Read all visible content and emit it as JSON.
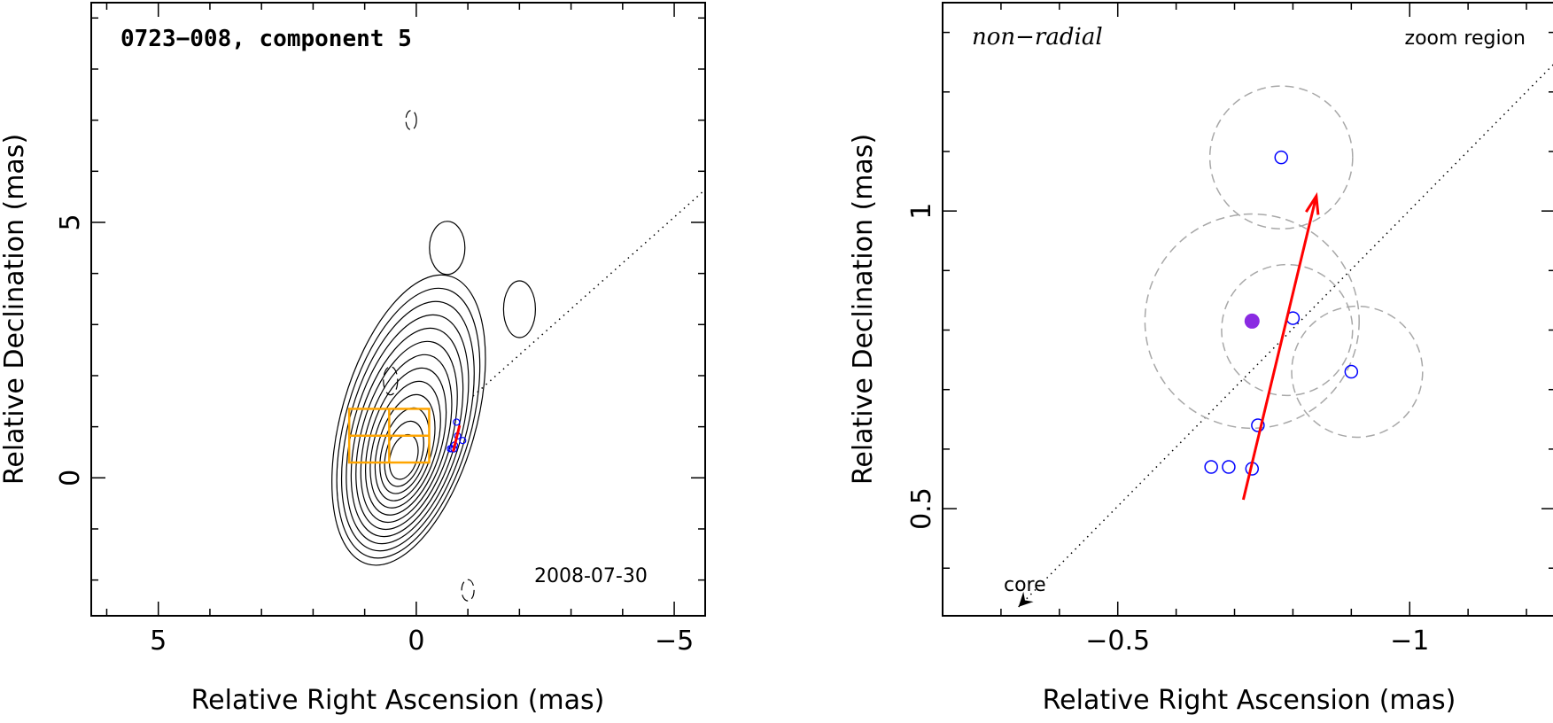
{
  "chart_data": [
    {
      "type": "contour",
      "panel": "left",
      "title": "0723−008, component 5",
      "date_label": "2008-07-30",
      "xlabel": "Relative Right Ascension (mas)",
      "ylabel": "Relative Declination (mas)",
      "xlim": [
        6.3,
        -5.6
      ],
      "ylim": [
        -2.7,
        9.3
      ],
      "x_ticks": [
        5,
        0,
        -5
      ],
      "x_tick_labels": [
        "5",
        "0",
        "−5"
      ],
      "y_ticks": [
        0,
        5
      ],
      "y_tick_labels": [
        "0",
        "5"
      ],
      "contour_center": [
        0.25,
        0.35
      ],
      "contour_levels": 13,
      "zoom_box": {
        "x_range": [
          1.3,
          -0.25
        ],
        "y_range": [
          0.3,
          1.35
        ],
        "color": "#FFA500"
      },
      "extra_contours": [
        {
          "x": -0.6,
          "y": 4.5,
          "style": "solid"
        },
        {
          "x": -2.0,
          "y": 3.3,
          "style": "solid"
        },
        {
          "x": 0.5,
          "y": 1.9,
          "style": "dashed"
        },
        {
          "x": 0.1,
          "y": 7.0,
          "style": "dashed"
        },
        {
          "x": -1.0,
          "y": -2.2,
          "style": "dashed"
        }
      ],
      "position_angle_line": {
        "from": [
          -1.1,
          1.6
        ],
        "to": [
          -6.0,
          6.0
        ]
      }
    },
    {
      "type": "scatter",
      "panel": "right",
      "label_motion": "non−radial",
      "label_region": "zoom region",
      "core_label": "core",
      "xlabel": "Relative Right Ascension (mas)",
      "ylabel": "Relative Declination (mas)",
      "xlim": [
        -0.2,
        -1.25
      ],
      "ylim": [
        0.32,
        1.35
      ],
      "x_ticks": [
        -0.5,
        -1
      ],
      "x_tick_labels": [
        "−0.5",
        "−1"
      ],
      "y_ticks": [
        0.5,
        1
      ],
      "y_tick_labels": [
        "0.5",
        "1"
      ],
      "points": [
        {
          "x": -0.78,
          "y": 1.09
        },
        {
          "x": -0.8,
          "y": 0.82
        },
        {
          "x": -0.9,
          "y": 0.73
        },
        {
          "x": -0.74,
          "y": 0.64
        },
        {
          "x": -0.66,
          "y": 0.57
        },
        {
          "x": -0.69,
          "y": 0.57
        },
        {
          "x": -0.73,
          "y": 0.567
        }
      ],
      "mean_point": {
        "x": -0.73,
        "y": 0.815,
        "color": "#8A2BE2"
      },
      "uncertainty_circles": [
        {
          "x": -0.78,
          "y": 1.09,
          "r": 0.12
        },
        {
          "x": -0.73,
          "y": 0.815,
          "r": 0.18
        },
        {
          "x": -0.79,
          "y": 0.8,
          "r": 0.11
        },
        {
          "x": -0.91,
          "y": 0.73,
          "r": 0.11
        }
      ],
      "velocity_vector": {
        "from": [
          -0.715,
          0.515
        ],
        "to": [
          -0.84,
          1.025
        ],
        "color": "#FF0000"
      },
      "position_angle_line": {
        "from": [
          -0.33,
          0.335
        ],
        "to": [
          -1.25,
          1.25
        ]
      }
    }
  ]
}
